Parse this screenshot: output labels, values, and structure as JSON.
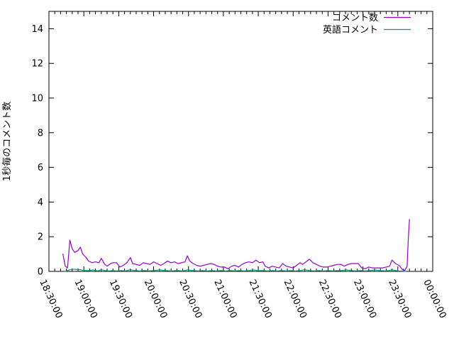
{
  "figure": {
    "background": "#ffffff",
    "border_color": "#000000",
    "text_color": "#000000"
  },
  "chart_data": {
    "type": "line",
    "title": "",
    "xlabel": "",
    "ylabel": "1秒毎のコメント数",
    "grid": false,
    "legend_position": "top-right-inside",
    "x_axis": {
      "tick_labels": [
        "18:30:00",
        "19:00:00",
        "19:30:00",
        "20:00:00",
        "20:30:00",
        "21:00:00",
        "21:30:00",
        "22:00:00",
        "22:30:00",
        "23:00:00",
        "23:30:00",
        "00:00:00"
      ],
      "major_tick_minutes": 30,
      "minor_tick_minutes": 5,
      "range_minutes": [
        0,
        330
      ],
      "label_rotation_deg": 65
    },
    "y_axis": {
      "ticks": [
        0,
        2,
        4,
        6,
        8,
        10,
        12,
        14
      ],
      "range": [
        0,
        15
      ]
    },
    "series": [
      {
        "name": "コメント数",
        "color": "#9400D3",
        "points": [
          [
            12,
            1.0
          ],
          [
            14,
            0.3
          ],
          [
            16,
            0.2
          ],
          [
            18,
            1.8
          ],
          [
            20,
            1.3
          ],
          [
            22,
            1.1
          ],
          [
            25,
            1.2
          ],
          [
            27,
            1.4
          ],
          [
            29,
            1.0
          ],
          [
            32,
            0.8
          ],
          [
            34,
            0.6
          ],
          [
            37,
            0.5
          ],
          [
            40,
            0.55
          ],
          [
            43,
            0.5
          ],
          [
            45,
            0.75
          ],
          [
            48,
            0.4
          ],
          [
            50,
            0.3
          ],
          [
            53,
            0.45
          ],
          [
            55,
            0.5
          ],
          [
            58,
            0.5
          ],
          [
            61,
            0.25
          ],
          [
            64,
            0.35
          ],
          [
            67,
            0.5
          ],
          [
            70,
            0.8
          ],
          [
            72,
            0.45
          ],
          [
            75,
            0.4
          ],
          [
            78,
            0.35
          ],
          [
            81,
            0.5
          ],
          [
            84,
            0.45
          ],
          [
            87,
            0.4
          ],
          [
            90,
            0.55
          ],
          [
            93,
            0.45
          ],
          [
            96,
            0.35
          ],
          [
            99,
            0.45
          ],
          [
            102,
            0.6
          ],
          [
            105,
            0.5
          ],
          [
            108,
            0.55
          ],
          [
            111,
            0.45
          ],
          [
            114,
            0.5
          ],
          [
            117,
            0.55
          ],
          [
            119,
            0.9
          ],
          [
            121,
            0.6
          ],
          [
            124,
            0.45
          ],
          [
            127,
            0.35
          ],
          [
            130,
            0.3
          ],
          [
            133,
            0.35
          ],
          [
            136,
            0.4
          ],
          [
            139,
            0.45
          ],
          [
            142,
            0.4
          ],
          [
            145,
            0.3
          ],
          [
            148,
            0.25
          ],
          [
            151,
            0.25
          ],
          [
            154,
            0.15
          ],
          [
            157,
            0.3
          ],
          [
            160,
            0.35
          ],
          [
            163,
            0.25
          ],
          [
            166,
            0.4
          ],
          [
            169,
            0.5
          ],
          [
            172,
            0.55
          ],
          [
            175,
            0.5
          ],
          [
            178,
            0.65
          ],
          [
            181,
            0.5
          ],
          [
            184,
            0.55
          ],
          [
            186,
            0.3
          ],
          [
            189,
            0.2
          ],
          [
            192,
            0.3
          ],
          [
            195,
            0.25
          ],
          [
            198,
            0.2
          ],
          [
            201,
            0.45
          ],
          [
            204,
            0.3
          ],
          [
            207,
            0.25
          ],
          [
            210,
            0.2
          ],
          [
            213,
            0.35
          ],
          [
            216,
            0.5
          ],
          [
            218,
            0.4
          ],
          [
            221,
            0.55
          ],
          [
            224,
            0.7
          ],
          [
            227,
            0.5
          ],
          [
            230,
            0.4
          ],
          [
            233,
            0.3
          ],
          [
            236,
            0.25
          ],
          [
            239,
            0.25
          ],
          [
            242,
            0.3
          ],
          [
            245,
            0.35
          ],
          [
            248,
            0.4
          ],
          [
            251,
            0.4
          ],
          [
            254,
            0.3
          ],
          [
            257,
            0.4
          ],
          [
            260,
            0.45
          ],
          [
            263,
            0.45
          ],
          [
            266,
            0.45
          ],
          [
            269,
            0.2
          ],
          [
            272,
            0.15
          ],
          [
            275,
            0.25
          ],
          [
            278,
            0.2
          ],
          [
            281,
            0.2
          ],
          [
            284,
            0.2
          ],
          [
            287,
            0.2
          ],
          [
            290,
            0.25
          ],
          [
            293,
            0.3
          ],
          [
            295,
            0.65
          ],
          [
            298,
            0.45
          ],
          [
            301,
            0.35
          ],
          [
            304,
            0.1
          ],
          [
            306,
            0.05
          ],
          [
            308,
            0.3
          ],
          [
            309,
            1.9
          ],
          [
            310,
            3.0
          ]
        ]
      },
      {
        "name": "英語コメント",
        "color": "#009E73",
        "points": [
          [
            14,
            0.0
          ],
          [
            16,
            0.05
          ],
          [
            18,
            0.1
          ],
          [
            21,
            0.12
          ],
          [
            24,
            0.12
          ],
          [
            27,
            0.1
          ],
          [
            30,
            0.05
          ],
          [
            35,
            0.05
          ],
          [
            38,
            0.08
          ],
          [
            42,
            0.03
          ],
          [
            45,
            0.1
          ],
          [
            48,
            0.05
          ],
          [
            52,
            0.03
          ],
          [
            55,
            0.05
          ],
          [
            58,
            0.03
          ],
          [
            62,
            0.05
          ],
          [
            66,
            0.03
          ],
          [
            70,
            0.1
          ],
          [
            74,
            0.05
          ],
          [
            78,
            0.03
          ],
          [
            82,
            0.05
          ],
          [
            86,
            0.03
          ],
          [
            90,
            0.05
          ],
          [
            95,
            0.08
          ],
          [
            100,
            0.05
          ],
          [
            105,
            0.03
          ],
          [
            110,
            0.05
          ],
          [
            115,
            0.03
          ],
          [
            119,
            0.08
          ],
          [
            124,
            0.05
          ],
          [
            128,
            0.03
          ],
          [
            132,
            0.05
          ],
          [
            136,
            0.03
          ],
          [
            140,
            0.05
          ],
          [
            144,
            0.03
          ],
          [
            148,
            0.05
          ],
          [
            152,
            0.03
          ],
          [
            156,
            0.05
          ],
          [
            160,
            0.03
          ],
          [
            164,
            0.05
          ],
          [
            168,
            0.03
          ],
          [
            172,
            0.05
          ],
          [
            176,
            0.08
          ],
          [
            180,
            0.05
          ],
          [
            184,
            0.05
          ],
          [
            188,
            0.03
          ],
          [
            192,
            0.05
          ],
          [
            196,
            0.03
          ],
          [
            200,
            0.05
          ],
          [
            204,
            0.03
          ],
          [
            208,
            0.05
          ],
          [
            212,
            0.03
          ],
          [
            216,
            0.05
          ],
          [
            220,
            0.1
          ],
          [
            224,
            0.05
          ],
          [
            228,
            0.03
          ],
          [
            232,
            0.05
          ],
          [
            236,
            0.03
          ],
          [
            240,
            0.05
          ],
          [
            244,
            0.03
          ],
          [
            248,
            0.05
          ],
          [
            252,
            0.05
          ],
          [
            256,
            0.08
          ],
          [
            260,
            0.05
          ],
          [
            264,
            0.03
          ],
          [
            268,
            0.05
          ],
          [
            272,
            0.03
          ],
          [
            276,
            0.05
          ],
          [
            280,
            0.08
          ],
          [
            285,
            0.05
          ],
          [
            290,
            0.03
          ],
          [
            295,
            0.08
          ],
          [
            300,
            0.03
          ],
          [
            304,
            0.02
          ],
          [
            307,
            0.0
          ]
        ]
      }
    ]
  }
}
